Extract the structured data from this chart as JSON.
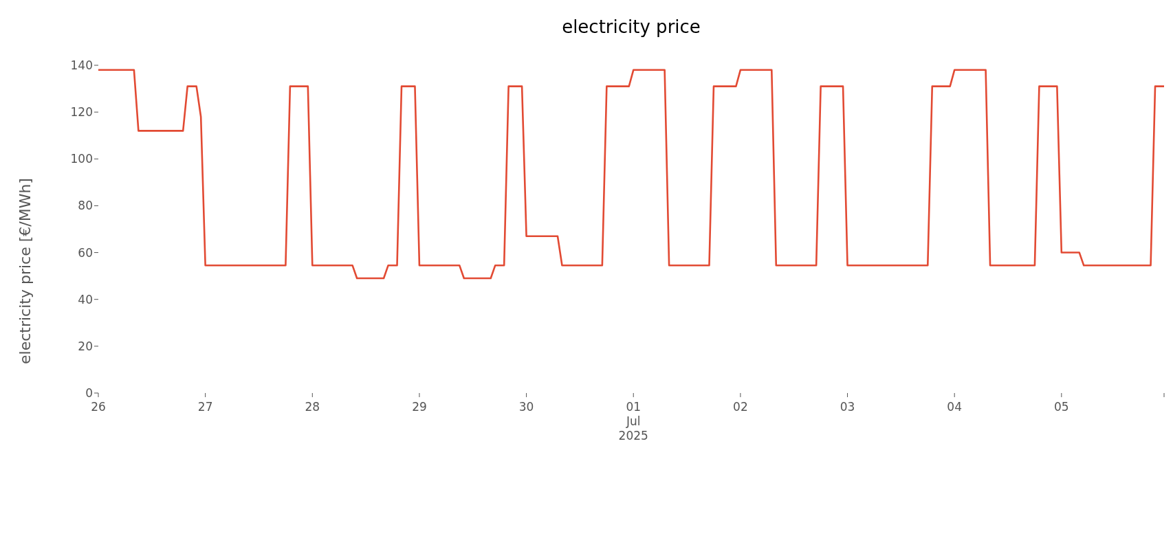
{
  "chart_data": {
    "type": "line",
    "title": "electricity price",
    "ylabel": "electricity price [€/MWh]",
    "xlim": [
      "2025-06-26T00:00",
      "2025-07-05T23:00"
    ],
    "xticks": [
      {
        "value": "2025-06-26",
        "label": "26"
      },
      {
        "value": "2025-06-27",
        "label": "27"
      },
      {
        "value": "2025-06-28",
        "label": "28"
      },
      {
        "value": "2025-06-29",
        "label": "29"
      },
      {
        "value": "2025-06-30",
        "label": "30"
      },
      {
        "value": "2025-07-01",
        "label": "01\nJul\n2025"
      },
      {
        "value": "2025-07-02",
        "label": "02"
      },
      {
        "value": "2025-07-03",
        "label": "03"
      },
      {
        "value": "2025-07-04",
        "label": "04"
      },
      {
        "value": "2025-07-05",
        "label": "05"
      },
      {
        "value": "2025-07-05T23:00",
        "label": null
      }
    ],
    "ylim": [
      0,
      140
    ],
    "yticks": [
      0,
      20,
      40,
      60,
      80,
      100,
      120,
      140
    ],
    "grid": false,
    "legend": false,
    "marker": "none",
    "line_style": "solid",
    "series": [
      {
        "color": "#e24a33",
        "x": [
          "2025-06-26T00:00",
          "2025-06-26T08:00",
          "2025-06-26T09:00",
          "2025-06-26T19:00",
          "2025-06-26T20:00",
          "2025-06-26T22:00",
          "2025-06-26T23:00",
          "2025-06-27T00:00",
          "2025-06-27T18:00",
          "2025-06-27T19:00",
          "2025-06-27T23:00",
          "2025-06-28T00:00",
          "2025-06-28T09:00",
          "2025-06-28T10:00",
          "2025-06-28T16:00",
          "2025-06-28T17:00",
          "2025-06-28T19:00",
          "2025-06-28T20:00",
          "2025-06-28T23:00",
          "2025-06-29T00:00",
          "2025-06-29T09:00",
          "2025-06-29T10:00",
          "2025-06-29T16:00",
          "2025-06-29T17:00",
          "2025-06-29T19:00",
          "2025-06-29T20:00",
          "2025-06-29T23:00",
          "2025-06-30T00:00",
          "2025-06-30T07:00",
          "2025-06-30T08:00",
          "2025-06-30T17:00",
          "2025-06-30T18:00",
          "2025-06-30T23:00",
          "2025-07-01T00:00",
          "2025-07-01T07:00",
          "2025-07-01T08:00",
          "2025-07-01T17:00",
          "2025-07-01T18:00",
          "2025-07-01T23:00",
          "2025-07-02T00:00",
          "2025-07-02T07:00",
          "2025-07-02T08:00",
          "2025-07-02T17:00",
          "2025-07-02T18:00",
          "2025-07-02T23:00",
          "2025-07-03T00:00",
          "2025-07-03T18:00",
          "2025-07-03T19:00",
          "2025-07-03T23:00",
          "2025-07-04T00:00",
          "2025-07-04T07:00",
          "2025-07-04T08:00",
          "2025-07-04T18:00",
          "2025-07-04T19:00",
          "2025-07-04T23:00",
          "2025-07-05T00:00",
          "2025-07-05T04:00",
          "2025-07-05T05:00",
          "2025-07-05T20:00",
          "2025-07-05T21:00",
          "2025-07-05T23:00"
        ],
        "values": [
          138,
          138,
          112,
          112,
          131,
          131,
          118,
          54.5,
          54.5,
          131,
          131,
          54.5,
          54.5,
          49,
          49,
          54.5,
          54.5,
          131,
          131,
          54.5,
          54.5,
          49,
          49,
          54.5,
          54.5,
          131,
          131,
          67,
          67,
          54.5,
          54.5,
          131,
          131,
          138,
          138,
          54.5,
          54.5,
          131,
          131,
          138,
          138,
          54.5,
          54.5,
          131,
          131,
          54.5,
          54.5,
          131,
          131,
          138,
          138,
          54.5,
          54.5,
          131,
          131,
          60,
          60,
          54.5,
          54.5,
          131,
          131
        ]
      }
    ]
  }
}
